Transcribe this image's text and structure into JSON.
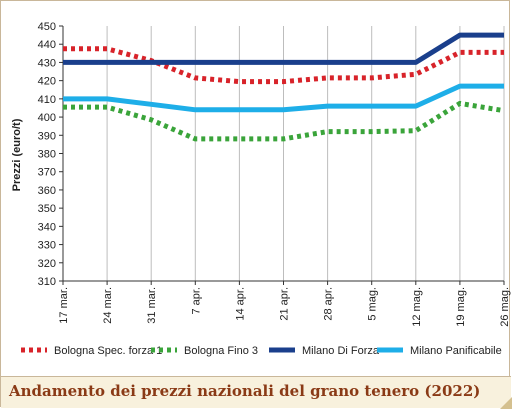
{
  "chart_data": {
    "type": "line",
    "title": "",
    "xlabel": "",
    "ylabel": "Prezzi (euro/t)",
    "ylim": [
      310,
      450
    ],
    "yticks": [
      310,
      320,
      330,
      340,
      350,
      360,
      370,
      380,
      390,
      400,
      410,
      420,
      430,
      440,
      450
    ],
    "categories": [
      "17 mar.",
      "24 mar.",
      "31 mar.",
      "7 apr.",
      "14 apr.",
      "21 apr.",
      "28 apr.",
      "5 mag.",
      "12 mag.",
      "19 mag.",
      "26 mag."
    ],
    "grid": "vertical",
    "legend_position": "bottom",
    "series": [
      {
        "name": "Bologna Spec. forza 1",
        "color": "#d8232a",
        "style": "dotted",
        "values": [
          437.5,
          437.5,
          431,
          421.5,
          419.5,
          419.5,
          421.5,
          421.5,
          423.5,
          435.5,
          435.5
        ]
      },
      {
        "name": "Bologna Fino 3",
        "color": "#3aa43a",
        "style": "dotted",
        "values": [
          405.5,
          405.5,
          398.5,
          388,
          388,
          388,
          392,
          392,
          392.5,
          407.5,
          403.5
        ]
      },
      {
        "name": "Milano Di Forza",
        "color": "#1a3f8c",
        "style": "solid",
        "values": [
          430,
          430,
          430,
          430,
          430,
          430,
          430,
          430,
          430,
          445,
          445
        ]
      },
      {
        "name": "Milano Panificabile",
        "color": "#1eaee8",
        "style": "solid",
        "values": [
          410,
          410,
          407,
          404,
          404,
          404,
          406,
          406,
          406,
          417,
          417
        ]
      }
    ]
  },
  "caption": "Andamento dei prezzi nazionali del grano tenero (2022)"
}
